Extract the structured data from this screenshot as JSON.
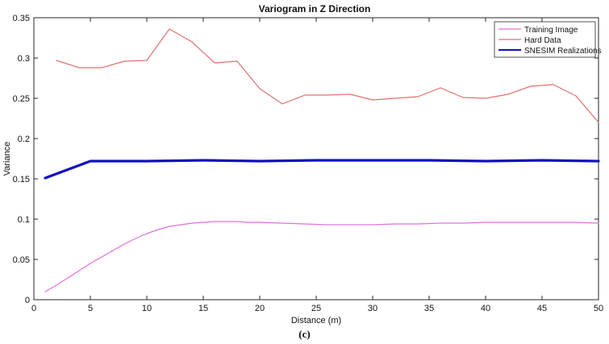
{
  "chart_data": {
    "type": "line",
    "title": "Variogram in Z Direction",
    "xlabel": "Distance (m)",
    "ylabel": "Variance",
    "xlim": [
      0,
      50
    ],
    "ylim": [
      0,
      0.35
    ],
    "xticks": [
      0,
      5,
      10,
      15,
      20,
      25,
      30,
      35,
      40,
      45,
      50
    ],
    "yticks": [
      0,
      0.05,
      0.1,
      0.15,
      0.2,
      0.25,
      0.3,
      0.35
    ],
    "grid": false,
    "legend_position": "top-right",
    "series": [
      {
        "name": "Training Image",
        "color": "#e070e0",
        "x": [
          1,
          2,
          3,
          4,
          5,
          6,
          7,
          8,
          9,
          10,
          11,
          12,
          13,
          14,
          15,
          16,
          17,
          18,
          19,
          20,
          22,
          24,
          26,
          28,
          30,
          32,
          34,
          36,
          38,
          40,
          42,
          44,
          46,
          48,
          50
        ],
        "y": [
          0.01,
          0.018,
          0.027,
          0.036,
          0.045,
          0.053,
          0.061,
          0.069,
          0.076,
          0.082,
          0.087,
          0.091,
          0.093,
          0.095,
          0.096,
          0.097,
          0.097,
          0.097,
          0.096,
          0.096,
          0.095,
          0.094,
          0.093,
          0.093,
          0.093,
          0.094,
          0.094,
          0.095,
          0.095,
          0.096,
          0.096,
          0.096,
          0.096,
          0.096,
          0.095
        ]
      },
      {
        "name": "Hard Data",
        "color": "#e07070",
        "x": [
          2,
          4,
          6,
          8,
          10,
          12,
          14,
          16,
          18,
          20,
          22,
          24,
          26,
          28,
          30,
          32,
          34,
          36,
          38,
          40,
          42,
          44,
          46,
          48,
          50
        ],
        "y": [
          0.297,
          0.288,
          0.288,
          0.296,
          0.297,
          0.336,
          0.32,
          0.294,
          0.296,
          0.262,
          0.243,
          0.254,
          0.254,
          0.255,
          0.248,
          0.25,
          0.252,
          0.263,
          0.251,
          0.25,
          0.255,
          0.265,
          0.267,
          0.253,
          0.22
        ]
      },
      {
        "name": "SNESIM Realizations",
        "color": "#1010c0",
        "x": [
          1,
          5,
          10,
          15,
          20,
          25,
          30,
          35,
          40,
          45,
          50
        ],
        "y": [
          0.151,
          0.172,
          0.172,
          0.173,
          0.172,
          0.173,
          0.173,
          0.173,
          0.172,
          0.173,
          0.172
        ]
      }
    ]
  }
}
